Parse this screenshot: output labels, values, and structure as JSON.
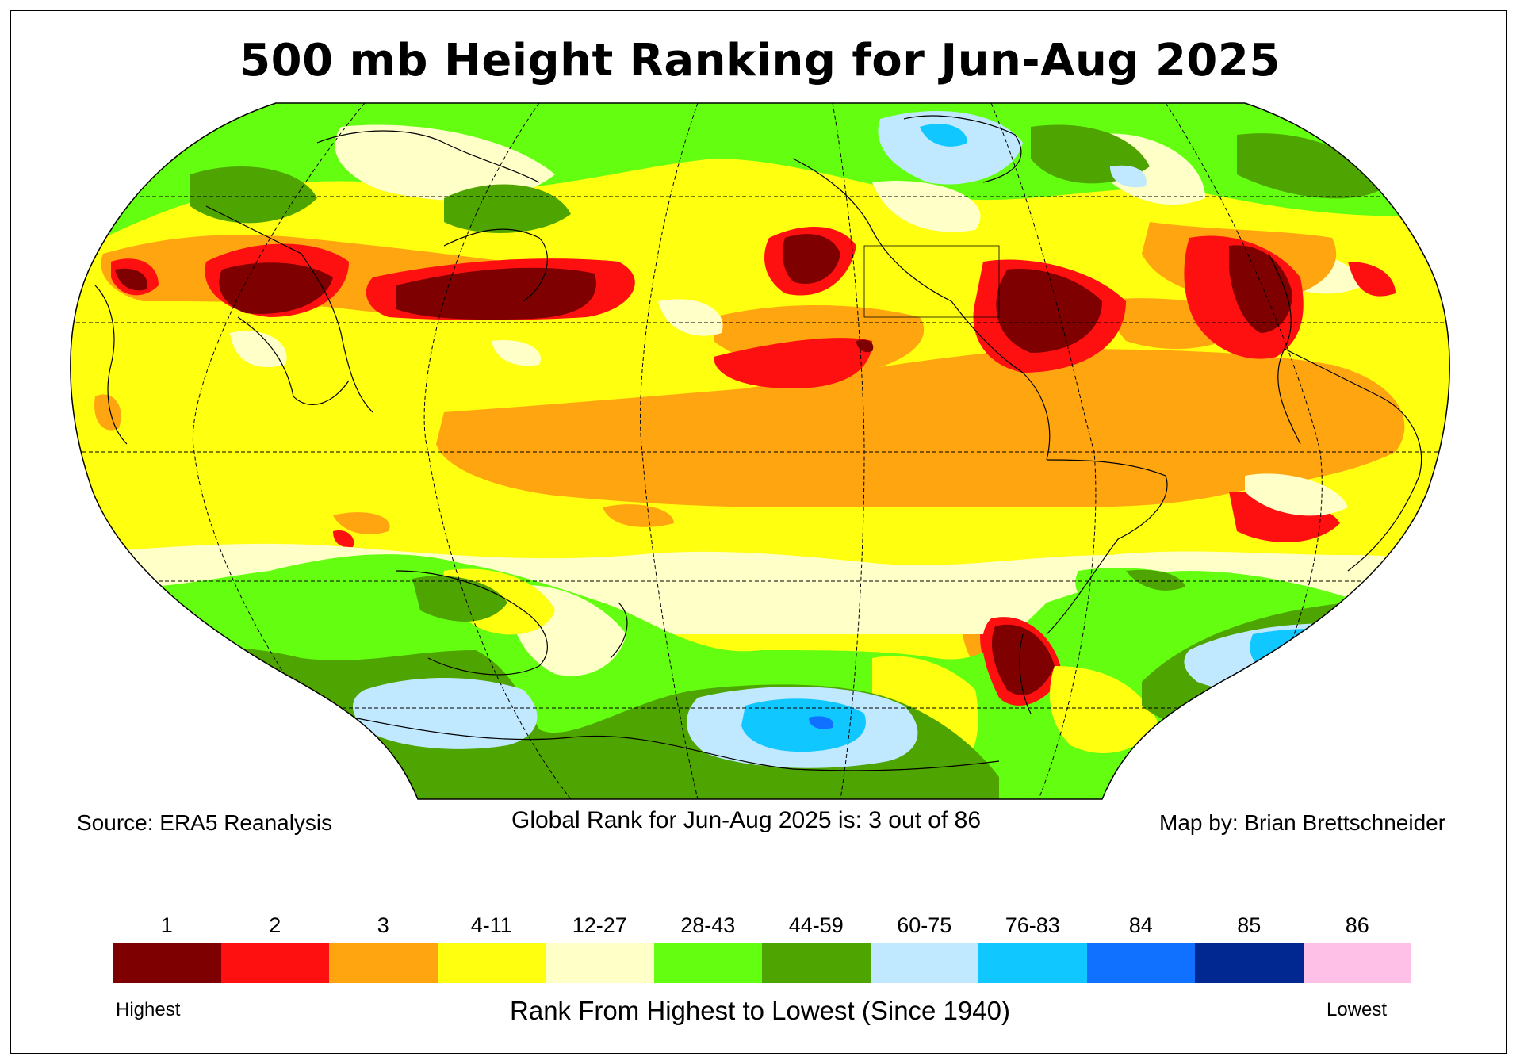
{
  "title": "500 mb Height Ranking for Jun-Aug 2025",
  "source": "Source: ERA5 Reanalysis",
  "global_rank": "Global Rank for Jun-Aug 2025 is: 3 out of 86",
  "credit": "Map by: Brian Brettschneider",
  "legend": {
    "title": "Rank From Highest to Lowest (Since 1940)",
    "high_label": "Highest",
    "low_label": "Lowest",
    "bins": [
      {
        "label": "1",
        "color": "#7f0000"
      },
      {
        "label": "2",
        "color": "#ff1010"
      },
      {
        "label": "3",
        "color": "#ffa510"
      },
      {
        "label": "4-11",
        "color": "#ffff10"
      },
      {
        "label": "12-27",
        "color": "#ffffc8"
      },
      {
        "label": "28-43",
        "color": "#64ff10"
      },
      {
        "label": "44-59",
        "color": "#4ea400"
      },
      {
        "label": "60-75",
        "color": "#c0e8ff"
      },
      {
        "label": "76-83",
        "color": "#10c8ff"
      },
      {
        "label": "84",
        "color": "#1070ff"
      },
      {
        "label": "85",
        "color": "#002890"
      },
      {
        "label": "86",
        "color": "#ffc0e8"
      }
    ]
  }
}
